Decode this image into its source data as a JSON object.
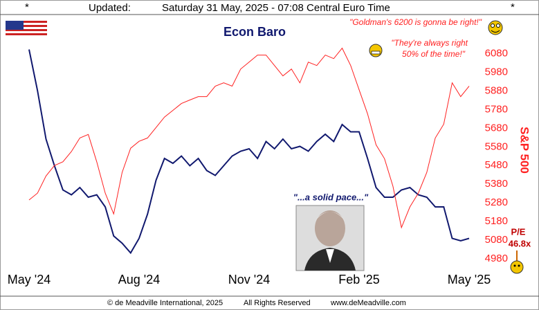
{
  "header": {
    "star_left": "*",
    "updated": "Updated:",
    "datetime": "Saturday 31 May, 2025 - 07:08 Central Euro Time",
    "star_right": "*"
  },
  "footer": {
    "copyright": "© de Meadville International, 2025",
    "rights": "All Rights Reserved",
    "site": "www.deMeadville.com"
  },
  "chart_data": {
    "type": "line",
    "annotations": {
      "goldman": "\"Goldman's 6200 is gonna be right!\"",
      "always_1": "\"They're always right",
      "always_2": "50% of the time!\"",
      "pace": "\"...a solid pace...\"",
      "pe_label": "P/E",
      "pe_value": "46.8x"
    },
    "xlim": [
      0,
      52
    ],
    "xticks": [
      {
        "value": 0,
        "label": "May '24"
      },
      {
        "value": 13,
        "label": "Aug '24"
      },
      {
        "value": 26,
        "label": "Nov '24"
      },
      {
        "value": 39,
        "label": "Feb '25"
      },
      {
        "value": 52,
        "label": "May '25"
      }
    ],
    "ylim": [
      4920,
      6220
    ],
    "yticks": [
      4980,
      5080,
      5180,
      5280,
      5380,
      5480,
      5580,
      5680,
      5780,
      5880,
      5980,
      6080
    ],
    "y2lim": [
      0,
      100
    ],
    "series": [
      {
        "name": "Econ Baro",
        "color": "#10186e",
        "axis": "y2",
        "values": [
          91,
          74,
          54,
          43,
          33,
          31,
          34,
          30,
          31,
          26,
          14,
          11,
          7,
          13,
          23,
          37,
          46,
          44,
          47,
          43,
          46,
          41,
          39,
          43,
          47,
          49,
          50,
          46,
          53,
          50,
          54,
          50,
          51,
          49,
          53,
          56,
          53,
          60,
          57,
          57,
          46,
          34,
          30,
          30,
          33,
          34,
          31,
          30,
          26,
          26,
          13,
          12,
          13
        ]
      },
      {
        "name": "S&P 500",
        "color": "#ff2020",
        "values": [
          5295,
          5332,
          5424,
          5480,
          5500,
          5555,
          5628,
          5647,
          5500,
          5332,
          5220,
          5443,
          5573,
          5610,
          5628,
          5684,
          5740,
          5776,
          5813,
          5832,
          5850,
          5850,
          5906,
          5924,
          5906,
          5998,
          6035,
          6073,
          6073,
          6017,
          5961,
          5998,
          5924,
          6035,
          6017,
          6073,
          6054,
          6110,
          6017,
          5887,
          5758,
          5591,
          5517,
          5369,
          5147,
          5258,
          5332,
          5443,
          5628,
          5702,
          5924,
          5850,
          5906
        ]
      }
    ]
  }
}
